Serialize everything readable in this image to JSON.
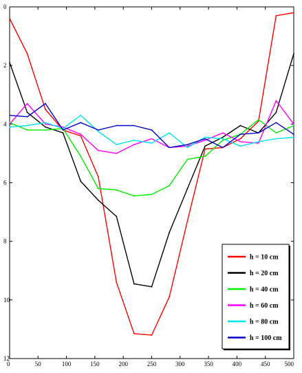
{
  "chart_data": {
    "type": "line",
    "title": "",
    "xlabel": "",
    "ylabel": "",
    "xlim": [
      0,
      500
    ],
    "ylim": [
      0,
      12
    ],
    "y_reversed": true,
    "grid": false,
    "legend_position": "bottom-right",
    "xticks": [
      "0",
      "50",
      "100",
      "150",
      "200",
      "250",
      "300",
      "350",
      "400",
      "450",
      "500"
    ],
    "yticks": [
      "0",
      "2",
      "4",
      "6",
      "8",
      "10",
      "12"
    ],
    "series": [
      {
        "name": "h = 10 cm",
        "color": "#ff0000",
        "x": [
          0,
          31,
          63,
          94,
          125,
          156,
          188,
          219,
          250,
          281,
          313,
          344,
          375,
          406,
          438,
          469,
          500
        ],
        "y": [
          0.4,
          1.6,
          3.5,
          4.2,
          4.4,
          5.8,
          9.4,
          11.15,
          11.2,
          9.9,
          7.3,
          4.85,
          4.8,
          4.5,
          3.9,
          0.3,
          0.2
        ]
      },
      {
        "name": "h = 20 cm",
        "color": "#000000",
        "x": [
          0,
          31,
          63,
          94,
          125,
          156,
          188,
          219,
          250,
          281,
          313,
          344,
          375,
          406,
          438,
          469,
          500
        ],
        "y": [
          1.9,
          3.6,
          4.1,
          4.3,
          5.95,
          6.6,
          7.15,
          9.45,
          9.55,
          7.7,
          6.2,
          4.75,
          4.45,
          4.05,
          4.3,
          3.6,
          1.6
        ]
      },
      {
        "name": "h = 40 cm",
        "color": "#00ee00",
        "x": [
          0,
          31,
          63,
          94,
          125,
          156,
          188,
          219,
          250,
          281,
          313,
          344,
          375,
          406,
          438,
          469,
          500
        ],
        "y": [
          3.95,
          4.2,
          4.2,
          4.15,
          5.1,
          6.2,
          6.25,
          6.45,
          6.4,
          6.1,
          5.2,
          5.1,
          4.55,
          4.35,
          3.85,
          4.3,
          4.05
        ]
      },
      {
        "name": "h = 60 cm",
        "color": "#ff00ff",
        "x": [
          0,
          31,
          63,
          94,
          125,
          156,
          188,
          219,
          250,
          281,
          313,
          344,
          375,
          406,
          438,
          469,
          500
        ],
        "y": [
          4.0,
          3.3,
          4.0,
          4.1,
          4.35,
          4.9,
          5.0,
          4.7,
          4.5,
          4.8,
          4.75,
          4.55,
          4.3,
          4.6,
          4.65,
          3.2,
          4.0
        ]
      },
      {
        "name": "h = 80 cm",
        "color": "#00e5ee",
        "x": [
          0,
          31,
          63,
          94,
          125,
          156,
          188,
          219,
          250,
          281,
          313,
          344,
          375,
          406,
          438,
          469,
          500
        ],
        "y": [
          4.1,
          4.05,
          3.95,
          4.15,
          3.7,
          4.25,
          4.7,
          4.55,
          4.65,
          4.3,
          4.8,
          4.45,
          4.5,
          4.75,
          4.6,
          4.5,
          4.45
        ]
      },
      {
        "name": "h = 100 cm",
        "color": "#0000cc",
        "x": [
          0,
          31,
          63,
          94,
          125,
          156,
          188,
          219,
          250,
          281,
          313,
          344,
          375,
          406,
          438,
          469,
          500
        ],
        "y": [
          3.7,
          3.75,
          3.3,
          4.2,
          3.95,
          4.2,
          4.05,
          4.05,
          4.2,
          4.8,
          4.7,
          4.5,
          4.8,
          4.35,
          4.3,
          3.95,
          4.35
        ]
      }
    ]
  }
}
